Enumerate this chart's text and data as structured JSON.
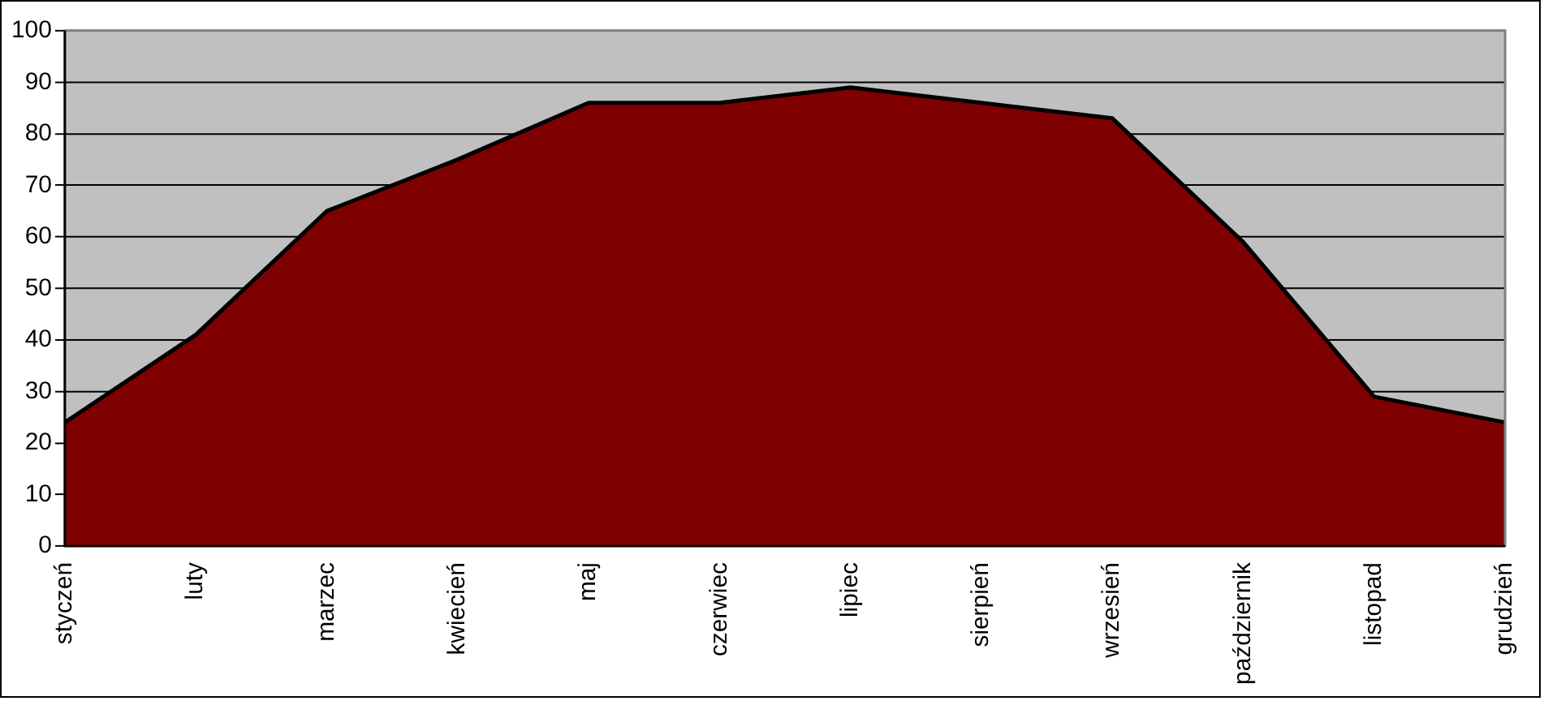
{
  "chart_data": {
    "type": "area",
    "categories": [
      "styczeń",
      "luty",
      "marzec",
      "kwiecień",
      "maj",
      "czerwiec",
      "lipiec",
      "sierpień",
      "wrzesień",
      "październik",
      "listopad",
      "grudzień"
    ],
    "series": [
      {
        "color": "#7f0000",
        "values": [
          24,
          41,
          65,
          75,
          86,
          86,
          89,
          86,
          83,
          59,
          29,
          24
        ]
      }
    ],
    "ylim": [
      0,
      100
    ],
    "yticks": [
      0,
      10,
      20,
      30,
      40,
      50,
      60,
      70,
      80,
      90,
      100
    ],
    "grid": "y",
    "legend": false,
    "marker": "none",
    "line_style": "solid"
  }
}
